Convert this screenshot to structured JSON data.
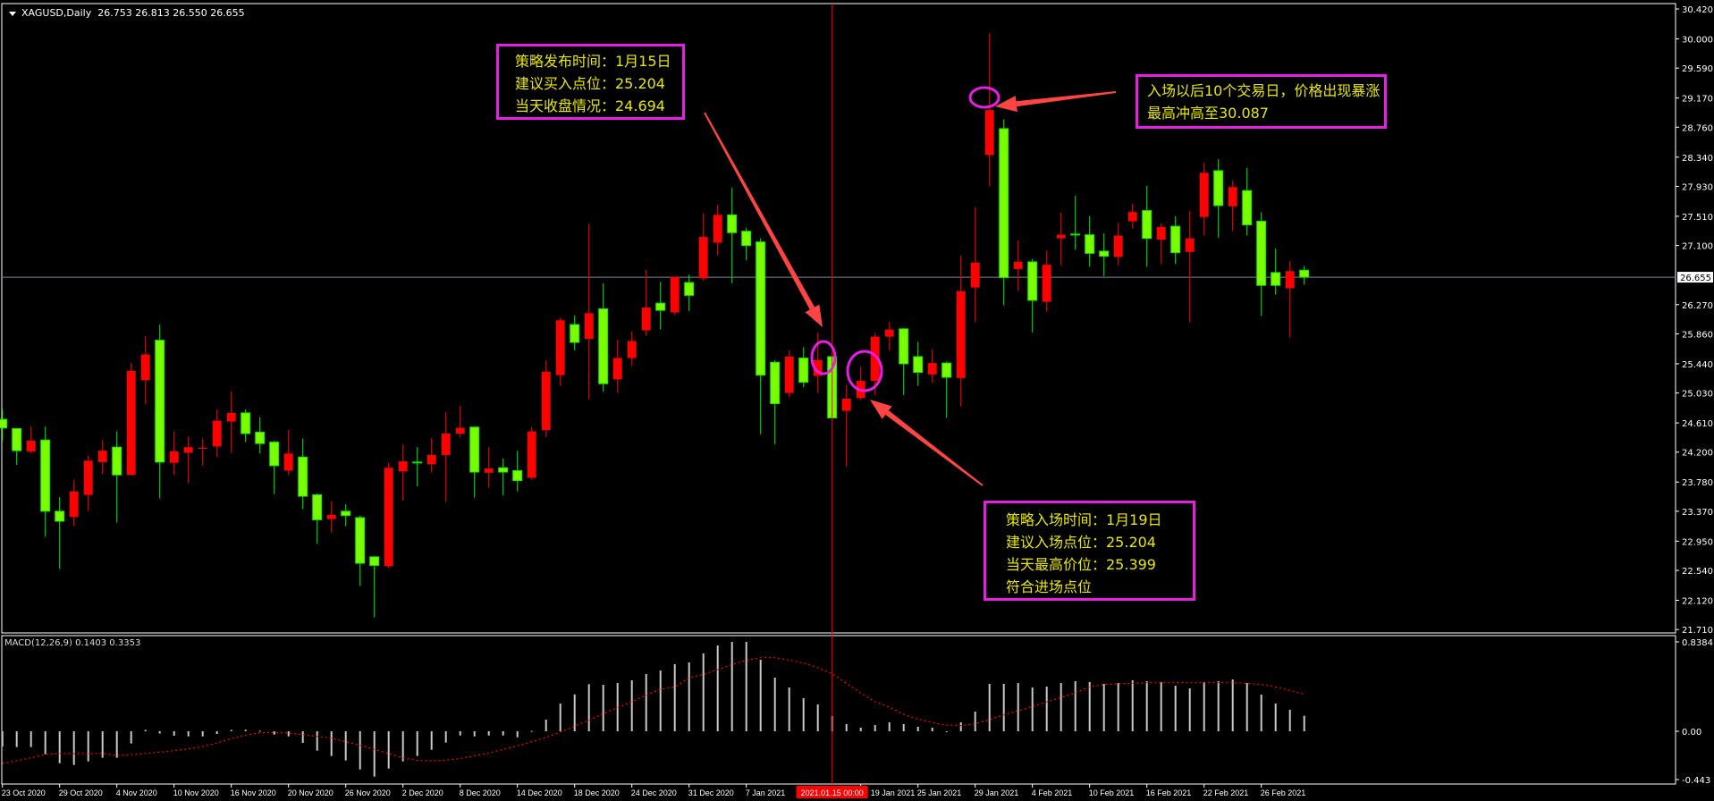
{
  "header": {
    "symbol": "XAGUSD,Daily",
    "ohlc": "26.753 26.813 26.550 26.655"
  },
  "macd_header": {
    "label": "MACD(12,26,9)",
    "values": "0.1403 0.3353"
  },
  "colors": {
    "up": "#ff0000",
    "down": "#7cfc00",
    "down_border": "#00ee00",
    "crosshair": "#ff0000",
    "price_line": "#7a8a99",
    "annotation_border": "#e61ee6",
    "annotation_text": "#e8e800",
    "arrow": "#ff4444",
    "signal": "#ff0000",
    "histogram": "#c8c8c8"
  },
  "chart_data": [
    {
      "type": "candlestick",
      "title": "XAGUSD,Daily",
      "ylim": [
        21.71,
        30.42
      ],
      "y_ticks": [
        "30.420",
        "30.000",
        "29.590",
        "29.170",
        "28.760",
        "28.340",
        "27.930",
        "27.510",
        "27.100",
        "26.270",
        "25.860",
        "25.440",
        "25.030",
        "24.610",
        "24.200",
        "23.780",
        "23.370",
        "22.950",
        "22.540",
        "22.120",
        "21.710"
      ],
      "current_price": "26.655",
      "x_labels": [
        {
          "i": 0,
          "t": "23 Oct 2020"
        },
        {
          "i": 4,
          "t": "29 Oct 2020"
        },
        {
          "i": 8,
          "t": "4 Nov 2020"
        },
        {
          "i": 12,
          "t": "10 Nov 2020"
        },
        {
          "i": 16,
          "t": "16 Nov 2020"
        },
        {
          "i": 20,
          "t": "20 Nov 2020"
        },
        {
          "i": 24,
          "t": "26 Nov 2020"
        },
        {
          "i": 28,
          "t": "2 Dec 2020"
        },
        {
          "i": 32,
          "t": "8 Dec 2020"
        },
        {
          "i": 36,
          "t": "14 Dec 2020"
        },
        {
          "i": 40,
          "t": "18 Dec 2020"
        },
        {
          "i": 44,
          "t": "24 Dec 2020"
        },
        {
          "i": 48,
          "t": "31 Dec 2020"
        },
        {
          "i": 52,
          "t": "7 Jan 2021"
        },
        {
          "i": 60,
          "t": "19 Jan 2021"
        },
        {
          "i": 64,
          "t": "25 Jan 2021"
        },
        {
          "i": 68,
          "t": "29 Jan 2021"
        },
        {
          "i": 72,
          "t": "4 Feb 2021"
        },
        {
          "i": 76,
          "t": "10 Feb 2021"
        },
        {
          "i": 80,
          "t": "16 Feb 2021"
        },
        {
          "i": 84,
          "t": "22 Feb 2021"
        },
        {
          "i": 88,
          "t": "26 Feb 2021"
        }
      ],
      "crosshair": {
        "index": 58,
        "label": "2021.01.15 00:00"
      },
      "ohlc_fields": [
        "open",
        "high",
        "low",
        "close"
      ],
      "candles": [
        [
          24.66,
          24.8,
          24.36,
          24.54
        ],
        [
          24.53,
          24.53,
          24.02,
          24.22
        ],
        [
          24.21,
          24.56,
          24.18,
          24.36
        ],
        [
          24.37,
          24.56,
          23.01,
          23.37
        ],
        [
          23.37,
          23.57,
          22.56,
          23.23
        ],
        [
          23.29,
          23.81,
          23.16,
          23.65
        ],
        [
          23.6,
          24.15,
          23.37,
          24.08
        ],
        [
          24.06,
          24.37,
          23.89,
          24.22
        ],
        [
          24.27,
          24.49,
          23.21,
          23.88
        ],
        [
          23.88,
          25.45,
          23.87,
          25.34
        ],
        [
          25.21,
          25.83,
          24.87,
          25.57
        ],
        [
          25.77,
          25.99,
          23.55,
          24.06
        ],
        [
          24.05,
          24.49,
          23.88,
          24.21
        ],
        [
          24.19,
          24.42,
          23.76,
          24.27
        ],
        [
          24.25,
          24.39,
          24.01,
          24.26
        ],
        [
          24.28,
          24.8,
          24.13,
          24.64
        ],
        [
          24.63,
          25.05,
          24.19,
          24.75
        ],
        [
          24.75,
          24.8,
          24.34,
          24.46
        ],
        [
          24.48,
          24.69,
          24.18,
          24.32
        ],
        [
          24.34,
          24.36,
          23.61,
          24.01
        ],
        [
          23.94,
          24.51,
          23.88,
          24.18
        ],
        [
          24.13,
          24.39,
          23.4,
          23.58
        ],
        [
          23.6,
          23.62,
          22.91,
          23.25
        ],
        [
          23.26,
          23.51,
          23.07,
          23.32
        ],
        [
          23.37,
          23.47,
          23.16,
          23.31
        ],
        [
          23.28,
          23.31,
          22.32,
          22.64
        ],
        [
          22.73,
          22.74,
          21.88,
          22.61
        ],
        [
          22.6,
          24.05,
          22.57,
          23.98
        ],
        [
          23.93,
          24.31,
          23.52,
          24.07
        ],
        [
          24.06,
          24.27,
          23.72,
          24.05
        ],
        [
          24.03,
          24.4,
          23.91,
          24.16
        ],
        [
          24.16,
          24.76,
          23.5,
          24.46
        ],
        [
          24.46,
          24.85,
          24.41,
          24.54
        ],
        [
          24.55,
          24.56,
          23.56,
          23.92
        ],
        [
          23.91,
          24.27,
          23.7,
          23.97
        ],
        [
          23.98,
          24.11,
          23.59,
          23.92
        ],
        [
          23.94,
          24.22,
          23.65,
          23.8
        ],
        [
          23.84,
          24.55,
          23.81,
          24.49
        ],
        [
          24.51,
          25.49,
          24.41,
          25.33
        ],
        [
          25.28,
          26.09,
          25.13,
          26.05
        ],
        [
          25.99,
          26.12,
          25.63,
          25.74
        ],
        [
          25.79,
          27.4,
          24.94,
          26.15
        ],
        [
          26.21,
          26.57,
          25.05,
          25.16
        ],
        [
          25.22,
          25.78,
          25.03,
          25.52
        ],
        [
          25.52,
          25.89,
          25.41,
          25.76
        ],
        [
          25.91,
          26.76,
          25.83,
          26.23
        ],
        [
          26.29,
          26.59,
          25.92,
          26.19
        ],
        [
          26.16,
          26.66,
          26.12,
          26.66
        ],
        [
          26.58,
          26.69,
          26.18,
          26.4
        ],
        [
          26.64,
          27.55,
          26.61,
          27.22
        ],
        [
          27.14,
          27.67,
          26.96,
          27.53
        ],
        [
          27.53,
          27.91,
          26.57,
          27.28
        ],
        [
          27.3,
          27.35,
          26.89,
          27.1
        ],
        [
          27.15,
          27.2,
          24.45,
          25.28
        ],
        [
          25.46,
          25.49,
          24.31,
          24.88
        ],
        [
          25.03,
          25.63,
          24.97,
          25.54
        ],
        [
          25.52,
          25.67,
          25.11,
          25.18
        ],
        [
          25.27,
          25.88,
          25.03,
          25.49
        ],
        [
          25.54,
          25.55,
          24.66,
          24.68
        ],
        [
          24.78,
          25.14,
          24.0,
          24.95
        ],
        [
          24.96,
          25.4,
          24.93,
          25.2
        ],
        [
          25.2,
          25.87,
          25.0,
          25.82
        ],
        [
          25.82,
          26.03,
          25.62,
          25.92
        ],
        [
          25.93,
          25.94,
          25.0,
          25.44
        ],
        [
          25.54,
          25.75,
          25.13,
          25.32
        ],
        [
          25.29,
          25.64,
          25.17,
          25.45
        ],
        [
          25.45,
          25.47,
          24.68,
          25.25
        ],
        [
          25.24,
          26.96,
          24.84,
          26.46
        ],
        [
          26.51,
          27.64,
          26.02,
          26.86
        ],
        [
          28.37,
          30.08,
          27.93,
          29.0
        ],
        [
          28.74,
          28.87,
          26.26,
          26.65
        ],
        [
          26.77,
          27.17,
          26.46,
          26.87
        ],
        [
          26.87,
          26.91,
          25.88,
          26.33
        ],
        [
          26.31,
          27.03,
          26.17,
          26.83
        ],
        [
          27.2,
          27.56,
          26.82,
          27.25
        ],
        [
          27.26,
          27.8,
          27.04,
          27.25
        ],
        [
          27.25,
          27.51,
          26.8,
          26.99
        ],
        [
          27.02,
          27.27,
          26.67,
          26.95
        ],
        [
          26.94,
          27.42,
          26.82,
          27.24
        ],
        [
          27.44,
          27.69,
          27.34,
          27.57
        ],
        [
          27.59,
          27.94,
          26.8,
          27.2
        ],
        [
          27.18,
          27.41,
          26.84,
          27.36
        ],
        [
          27.37,
          27.51,
          26.84,
          27.0
        ],
        [
          27.01,
          27.59,
          26.02,
          27.2
        ],
        [
          27.5,
          28.26,
          27.24,
          28.12
        ],
        [
          28.15,
          28.31,
          27.21,
          27.66
        ],
        [
          27.65,
          28.01,
          27.3,
          27.92
        ],
        [
          27.87,
          28.19,
          27.24,
          27.39
        ],
        [
          27.44,
          27.57,
          26.11,
          26.54
        ],
        [
          26.72,
          27.06,
          26.41,
          26.54
        ],
        [
          26.5,
          26.88,
          25.81,
          26.74
        ],
        [
          26.753,
          26.813,
          26.55,
          26.655
        ]
      ]
    },
    {
      "type": "bar+line",
      "title": "MACD(12,26,9)",
      "ylim": [
        -0.443,
        0.8384
      ],
      "y_ticks": [
        "0.8384",
        "0.00",
        "-0.443"
      ],
      "histogram": [
        -0.137,
        -0.142,
        -0.142,
        -0.207,
        -0.288,
        -0.304,
        -0.272,
        -0.239,
        -0.239,
        -0.11,
        0.013,
        -0.02,
        -0.04,
        -0.046,
        -0.046,
        -0.024,
        0.012,
        0.014,
        0.005,
        -0.03,
        -0.046,
        -0.105,
        -0.175,
        -0.223,
        -0.263,
        -0.344,
        -0.409,
        -0.336,
        -0.272,
        -0.223,
        -0.167,
        -0.102,
        -0.038,
        -0.046,
        -0.038,
        -0.038,
        -0.054,
        0.003,
        0.105,
        0.25,
        0.333,
        0.425,
        0.419,
        0.435,
        0.46,
        0.516,
        0.548,
        0.605,
        0.621,
        0.702,
        0.774,
        0.806,
        0.806,
        0.645,
        0.484,
        0.395,
        0.298,
        0.242,
        0.137,
        0.065,
        0.032,
        0.056,
        0.081,
        0.065,
        0.04,
        0.032,
        -0.005,
        0.081,
        0.177,
        0.427,
        0.427,
        0.435,
        0.395,
        0.403,
        0.435,
        0.452,
        0.444,
        0.427,
        0.435,
        0.46,
        0.452,
        0.444,
        0.411,
        0.387,
        0.444,
        0.452,
        0.468,
        0.435,
        0.331,
        0.25,
        0.194,
        0.1403
      ],
      "signal": [
        -0.29,
        -0.266,
        -0.239,
        -0.21,
        -0.2,
        -0.2,
        -0.2,
        -0.2,
        -0.218,
        -0.212,
        -0.199,
        -0.188,
        -0.175,
        -0.159,
        -0.137,
        -0.105,
        -0.067,
        -0.035,
        -0.013,
        -0.013,
        -0.016,
        -0.03,
        -0.046,
        -0.062,
        -0.094,
        -0.126,
        -0.164,
        -0.2,
        -0.239,
        -0.261,
        -0.266,
        -0.261,
        -0.245,
        -0.223,
        -0.196,
        -0.164,
        -0.132,
        -0.094,
        -0.056,
        -0.008,
        0.046,
        0.099,
        0.159,
        0.212,
        0.266,
        0.325,
        0.379,
        0.4,
        0.481,
        0.513,
        0.556,
        0.6,
        0.642,
        0.664,
        0.664,
        0.642,
        0.616,
        0.573,
        0.519,
        0.433,
        0.347,
        0.266,
        0.218,
        0.153,
        0.11,
        0.078,
        0.056,
        0.051,
        0.067,
        0.105,
        0.148,
        0.185,
        0.223,
        0.266,
        0.304,
        0.347,
        0.4,
        0.422,
        0.427,
        0.433,
        0.438,
        0.438,
        0.438,
        0.438,
        0.438,
        0.438,
        0.438,
        0.433,
        0.422,
        0.4,
        0.368,
        0.3353
      ]
    }
  ],
  "annotations": {
    "release": {
      "lines": [
        "策略发布时间：1月15日",
        "建议买入点位：25.204",
        "当天收盘情况：24.694"
      ]
    },
    "surge": {
      "lines": [
        "入场以后10个交易日，价格出现暴涨",
        "最高冲高至30.087"
      ]
    },
    "entry": {
      "lines": [
        "策略入场时间：1月19日",
        "建议入场点位：25.204",
        "当天最高价位：25.399",
        "符合进场点位"
      ]
    }
  }
}
